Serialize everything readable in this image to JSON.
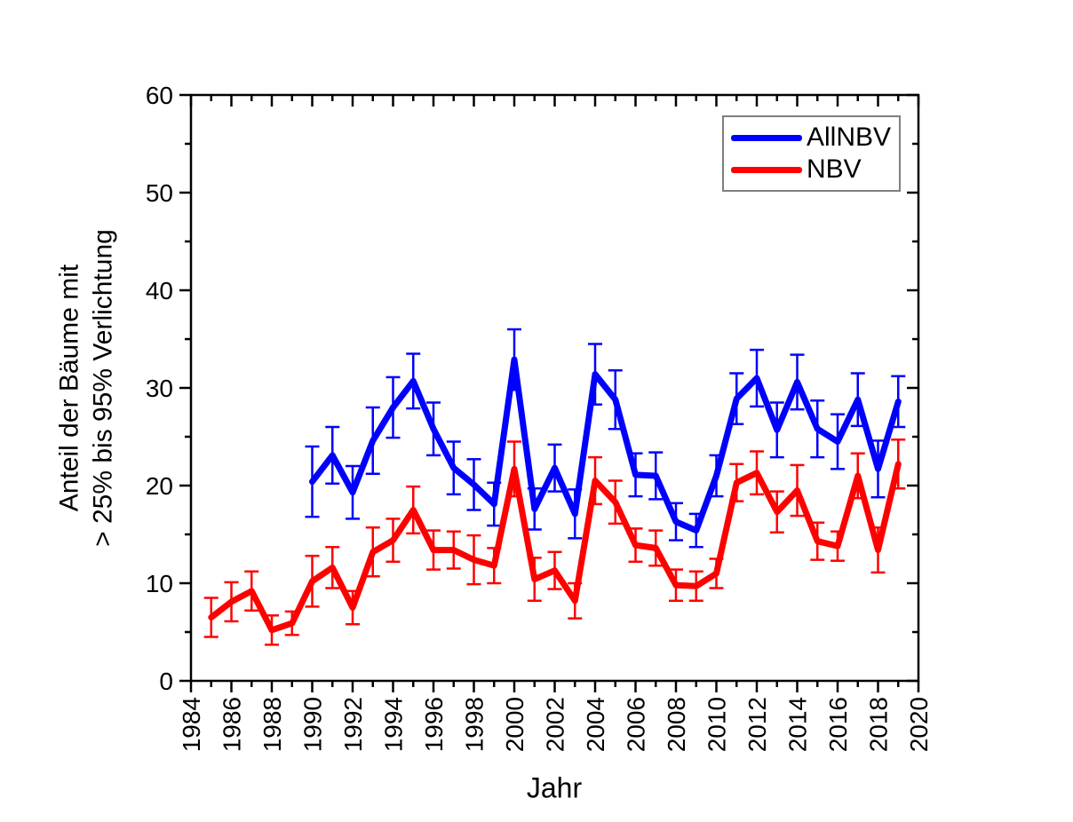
{
  "chart_data": {
    "type": "line",
    "title": "",
    "xlabel": "Jahr",
    "ylabel_lines": [
      "Anteil der Bäume mit",
      "> 25% bis 95% Verlichtung"
    ],
    "xlim": [
      1984,
      2020
    ],
    "ylim": [
      0,
      60
    ],
    "grid": false,
    "axis_color": "#000000",
    "x_major_tick_step": 2,
    "x_minor_tick_step": 1,
    "y_major_tick_step": 10,
    "y_minor_tick_step": 5,
    "x_tick_labels": [
      "1984",
      "1986",
      "1988",
      "1990",
      "1992",
      "1994",
      "1996",
      "1998",
      "2000",
      "2002",
      "2004",
      "2006",
      "2008",
      "2010",
      "2012",
      "2014",
      "2016",
      "2018",
      "2020"
    ],
    "y_tick_labels": [
      "0",
      "10",
      "20",
      "30",
      "40",
      "50",
      "60"
    ],
    "legend": {
      "position": "top-right",
      "border_color": "#7f7f7f",
      "entries": [
        {
          "label": "AllNBV",
          "color": "#0000ff"
        },
        {
          "label": "NBV",
          "color": "#ff0000"
        }
      ]
    },
    "series": [
      {
        "name": "AllNBV",
        "color": "#0000ff",
        "x": [
          1990,
          1991,
          1992,
          1993,
          1994,
          1995,
          1996,
          1997,
          1998,
          1999,
          2000,
          2001,
          2002,
          2003,
          2004,
          2005,
          2006,
          2007,
          2008,
          2009,
          2010,
          2011,
          2012,
          2013,
          2014,
          2015,
          2016,
          2017,
          2018,
          2019
        ],
        "y": [
          20.4,
          23.1,
          19.3,
          24.6,
          28.0,
          30.7,
          25.8,
          21.8,
          20.1,
          18.1,
          32.9,
          17.6,
          21.8,
          17.1,
          31.4,
          28.8,
          21.1,
          21.0,
          16.3,
          15.4,
          21.0,
          28.9,
          31.0,
          25.7,
          30.6,
          25.8,
          24.5,
          28.8,
          21.7,
          28.6
        ],
        "err": [
          3.6,
          2.9,
          2.7,
          3.4,
          3.1,
          2.8,
          2.7,
          2.7,
          2.6,
          2.2,
          3.1,
          2.1,
          2.4,
          2.5,
          3.1,
          3.0,
          2.2,
          2.4,
          1.9,
          1.7,
          2.1,
          2.6,
          2.9,
          2.8,
          2.8,
          2.9,
          2.8,
          2.7,
          2.9,
          2.6
        ]
      },
      {
        "name": "NBV",
        "color": "#ff0000",
        "x": [
          1985,
          1986,
          1987,
          1988,
          1989,
          1990,
          1991,
          1992,
          1993,
          1994,
          1995,
          1996,
          1997,
          1998,
          1999,
          2000,
          2001,
          2002,
          2003,
          2004,
          2005,
          2006,
          2007,
          2008,
          2009,
          2010,
          2011,
          2012,
          2013,
          2014,
          2015,
          2016,
          2017,
          2018,
          2019
        ],
        "y": [
          6.5,
          8.1,
          9.2,
          5.2,
          5.9,
          10.2,
          11.6,
          7.5,
          13.2,
          14.4,
          17.5,
          13.4,
          13.4,
          12.4,
          11.8,
          21.7,
          10.4,
          11.3,
          8.2,
          20.5,
          18.3,
          13.9,
          13.6,
          9.8,
          9.7,
          11.0,
          20.3,
          21.3,
          17.3,
          19.5,
          14.3,
          13.8,
          21.0,
          13.4,
          22.2
        ],
        "err": [
          2.0,
          2.0,
          2.0,
          1.5,
          1.2,
          2.6,
          2.1,
          1.7,
          2.5,
          2.2,
          2.4,
          2.0,
          1.9,
          2.5,
          1.8,
          2.8,
          2.2,
          1.9,
          1.8,
          2.4,
          2.2,
          1.7,
          1.8,
          1.6,
          1.5,
          1.5,
          1.9,
          2.2,
          2.1,
          2.6,
          1.9,
          1.5,
          2.3,
          2.3,
          2.5
        ]
      }
    ]
  }
}
